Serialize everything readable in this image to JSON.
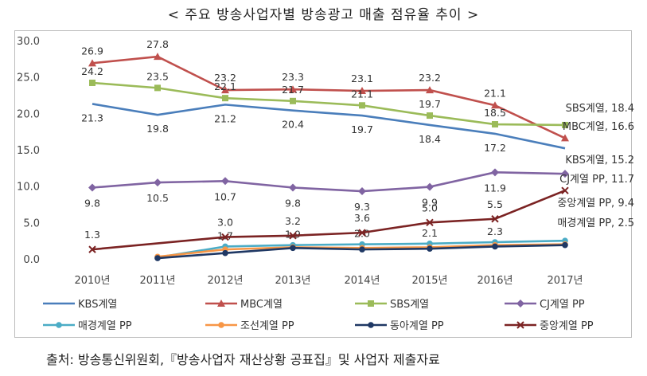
{
  "title": "< 주요 방송사업자별 방송광고 매출 점유율 추이 >",
  "source": "출처: 방송통신위원회,『방송사업자 재산상황 공표집』및 사업자 제출자료",
  "chart_data": {
    "type": "line",
    "title": "< 주요 방송사업자별 방송광고 매출 점유율 추이 >",
    "categories": [
      "2010년",
      "2011년",
      "2012년",
      "2013년",
      "2014년",
      "2015년",
      "2016년",
      "2017년"
    ],
    "ylim": [
      0,
      30
    ],
    "yticks": [
      "0.0",
      "5.0",
      "10.0",
      "15.0",
      "20.0",
      "25.0",
      "30.0"
    ],
    "legend_position": "bottom",
    "grid": false,
    "series": [
      {
        "name": "KBS계열",
        "color": "#4a7ebb",
        "marker": "none",
        "values": [
          21.3,
          19.8,
          21.2,
          20.4,
          19.7,
          18.4,
          17.2,
          15.2
        ],
        "labels": [
          "21.3",
          "19.8",
          "21.2",
          "20.4",
          "19.7",
          "18.4",
          "17.2",
          ""
        ],
        "end_label": "KBS계열, 15.2"
      },
      {
        "name": "MBC계열",
        "color": "#c0504d",
        "marker": "triangle",
        "values": [
          26.9,
          27.8,
          23.2,
          23.3,
          23.1,
          23.2,
          21.1,
          16.6
        ],
        "labels": [
          "26.9",
          "27.8",
          "23.2",
          "23.3",
          "23.1",
          "23.2",
          "21.1",
          ""
        ],
        "end_label": "MBC계열, 16.6"
      },
      {
        "name": "SBS계열",
        "color": "#9bbb59",
        "marker": "square",
        "values": [
          24.2,
          23.5,
          22.1,
          21.7,
          21.1,
          19.7,
          18.5,
          18.4
        ],
        "labels": [
          "24.2",
          "23.5",
          "22.1",
          "21.7",
          "21.1",
          "19.7",
          "18.5",
          ""
        ],
        "end_label": "SBS계열, 18.4"
      },
      {
        "name": "CJ계열 PP",
        "color": "#8064a2",
        "marker": "diamond",
        "values": [
          9.8,
          10.5,
          10.7,
          9.8,
          9.3,
          9.9,
          11.9,
          11.7
        ],
        "labels": [
          "9.8",
          "10.5",
          "10.7",
          "9.8",
          "9.3",
          "9.9",
          "11.9",
          ""
        ],
        "end_label": "CJ계열 PP, 11.7"
      },
      {
        "name": "매경계열 PP",
        "color": "#4bacc6",
        "marker": "circle",
        "values": [
          null,
          0.2,
          1.7,
          1.9,
          2.0,
          2.1,
          2.3,
          2.5
        ],
        "labels": [
          "",
          "",
          "1.7",
          "1.9",
          "2.0",
          "2.1",
          "2.3",
          ""
        ],
        "end_label": "매경계열 PP, 2.5"
      },
      {
        "name": "조선계열 PP",
        "color": "#f79646",
        "marker": "circle",
        "values": [
          null,
          0.3,
          1.3,
          1.6,
          1.5,
          1.6,
          1.9,
          2.0
        ],
        "labels": [
          "",
          "",
          "",
          "",
          "",
          "",
          "",
          ""
        ],
        "end_label": ""
      },
      {
        "name": "동아계열 PP",
        "color": "#1f3864",
        "marker": "circle",
        "values": [
          null,
          0.1,
          0.8,
          1.5,
          1.3,
          1.4,
          1.7,
          1.9
        ],
        "labels": [
          "",
          "",
          "",
          "",
          "",
          "",
          "",
          ""
        ],
        "end_label": ""
      },
      {
        "name": "중앙계열 PP",
        "color": "#7b2323",
        "marker": "x",
        "values": [
          1.3,
          null,
          3.0,
          3.2,
          3.6,
          5.0,
          5.5,
          9.4
        ],
        "labels": [
          "1.3",
          "",
          "3.0",
          "3.2",
          "3.6",
          "5.0",
          "5.5",
          ""
        ],
        "end_label": "중앙계열 PP, 9.4"
      }
    ]
  }
}
